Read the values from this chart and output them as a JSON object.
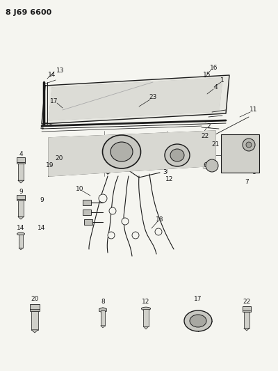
{
  "title": "8 J69 6600",
  "bg_color": "#f5f5f0",
  "line_color": "#1a1a1a",
  "fig_width": 4.0,
  "fig_height": 5.33,
  "dpi": 100
}
